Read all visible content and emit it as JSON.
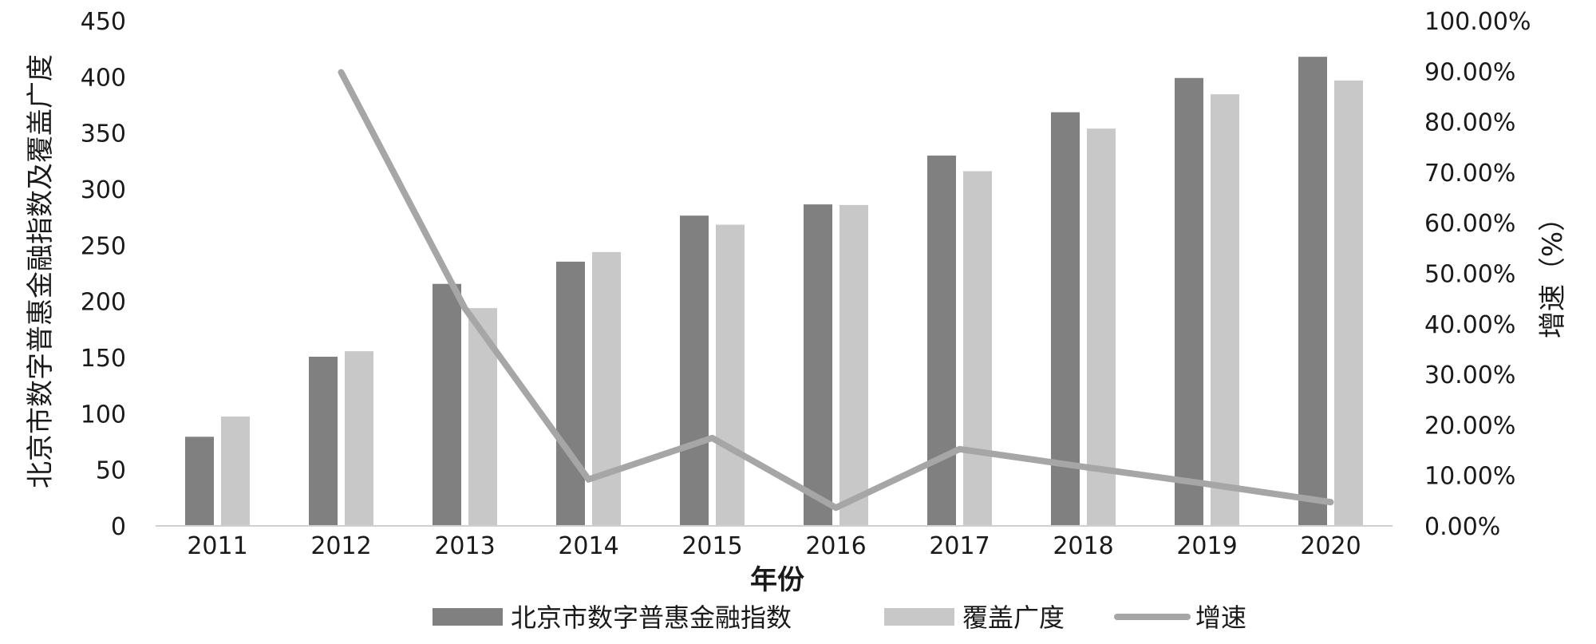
{
  "chart_data": {
    "type": "bar",
    "categories": [
      "2011",
      "2012",
      "2013",
      "2014",
      "2015",
      "2016",
      "2017",
      "2018",
      "2019",
      "2020"
    ],
    "xlabel": "年份",
    "ylabel": "北京市数字普惠金融指数及覆盖广度",
    "ylabel_right": "增速（%）",
    "ylim": [
      0,
      450
    ],
    "ylim_right": [
      0,
      1.0
    ],
    "yticks": [
      "0",
      "50",
      "100",
      "150",
      "200",
      "250",
      "300",
      "350",
      "400",
      "450"
    ],
    "yticks_right": [
      "0.00%",
      "10.00%",
      "20.00%",
      "30.00%",
      "40.00%",
      "50.00%",
      "60.00%",
      "70.00%",
      "80.00%",
      "90.00%",
      "100.00%"
    ],
    "series": [
      {
        "name": "北京市数字普惠金融指数",
        "type": "bar",
        "axis": "left",
        "color": "#808080",
        "values": [
          79.4,
          150.7,
          215.6,
          235.4,
          276.4,
          286.4,
          329.9,
          368.5,
          399.0,
          417.9
        ]
      },
      {
        "name": "覆盖广度",
        "type": "bar",
        "axis": "left",
        "color": "#c8c8c8",
        "values": [
          97.4,
          155.6,
          194.0,
          244.0,
          268.3,
          285.9,
          316.0,
          353.9,
          384.5,
          396.8
        ]
      },
      {
        "name": "增速",
        "type": "line",
        "axis": "right",
        "color": "#a6a6a6",
        "values": [
          null,
          0.898,
          0.431,
          0.092,
          0.174,
          0.036,
          0.152,
          0.117,
          0.083,
          0.047
        ]
      }
    ],
    "legend": "bottom",
    "grid": false
  }
}
